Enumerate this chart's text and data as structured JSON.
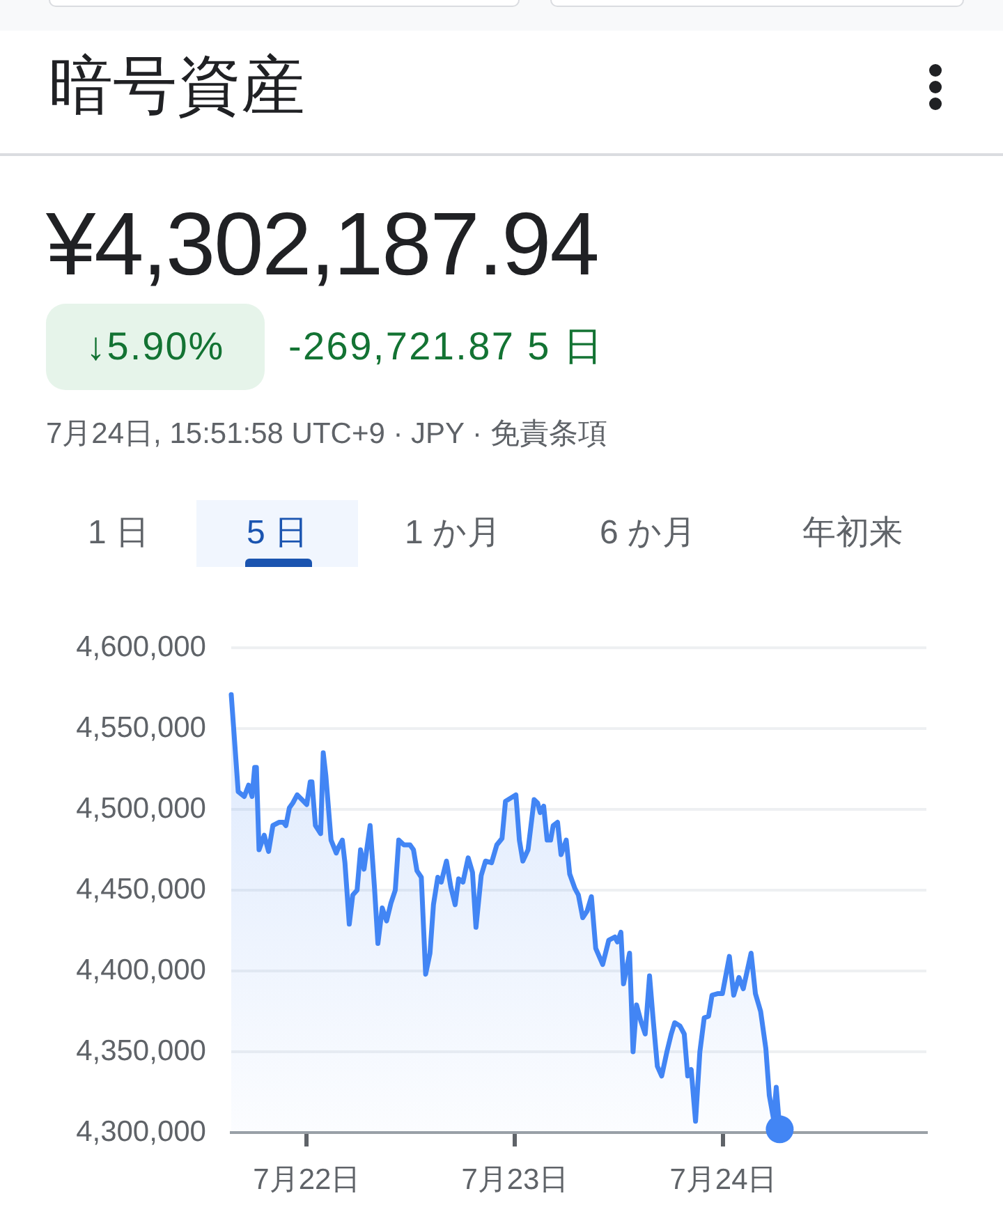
{
  "chart_data": {
    "type": "area",
    "title": "暗号資産",
    "subtitle": "¥4,302,187.94",
    "annotations": [
      "↓5.90%",
      "-269,721.87 5 日",
      "7月24日, 15:51:58 UTC+9 · JPY · 免責条項",
      "1 日",
      "5 日",
      "1 か月",
      "6 か月",
      "年初来"
    ],
    "x": [
      "--07-21T15:18",
      "--07-21T16:06",
      "--07-21T16:48",
      "--07-21T17:18",
      "--07-21T17:42",
      "--07-21T18:00",
      "--07-21T18:12",
      "--07-21T18:30",
      "--07-21T19:06",
      "--07-21T19:36",
      "--07-21T20:06",
      "--07-21T20:48",
      "--07-21T21:18",
      "--07-21T21:36",
      "--07-21T22:00",
      "--07-21T22:24",
      "--07-21T22:54",
      "--07-22T00:00",
      "--07-22T00:24",
      "--07-22T00:36",
      "--07-22T01:00",
      "--07-22T01:36",
      "--07-22T01:54",
      "--07-22T02:12",
      "--07-22T02:48",
      "--07-22T03:24",
      "--07-22T03:42",
      "--07-22T04:06",
      "--07-22T04:24",
      "--07-22T04:54",
      "--07-22T05:18",
      "--07-22T05:48",
      "--07-22T06:12",
      "--07-22T06:36",
      "--07-22T07:18",
      "--07-22T07:48",
      "--07-22T08:12",
      "--07-22T08:42",
      "--07-22T09:12",
      "--07-22T09:42",
      "--07-22T10:12",
      "--07-22T10:36",
      "--07-22T11:12",
      "--07-22T11:54",
      "--07-22T12:18",
      "--07-22T12:42",
      "--07-22T13:12",
      "--07-22T13:42",
      "--07-22T14:12",
      "--07-22T14:36",
      "--07-22T15:06",
      "--07-22T15:30",
      "--07-22T16:06",
      "--07-22T16:36",
      "--07-22T17:06",
      "--07-22T17:30",
      "--07-22T18:00",
      "--07-22T18:36",
      "--07-22T19:06",
      "--07-22T19:30",
      "--07-22T20:06",
      "--07-22T20:36",
      "--07-22T21:18",
      "--07-22T21:54",
      "--07-22T22:30",
      "--07-22T22:54",
      "--07-23T00:06",
      "--07-23T00:30",
      "--07-23T00:54",
      "--07-23T01:30",
      "--07-23T02:12",
      "--07-23T02:36",
      "--07-23T02:54",
      "--07-23T03:18",
      "--07-23T03:42",
      "--07-23T04:06",
      "--07-23T04:24",
      "--07-23T04:54",
      "--07-23T05:18",
      "--07-23T05:54",
      "--07-23T06:18",
      "--07-23T06:54",
      "--07-23T07:18",
      "--07-23T07:48",
      "--07-23T08:18",
      "--07-23T08:48",
      "--07-23T09:18",
      "--07-23T10:06",
      "--07-23T10:48",
      "--07-23T11:30",
      "--07-23T11:48",
      "--07-23T12:12",
      "--07-23T12:30",
      "--07-23T13:12",
      "--07-23T13:36",
      "--07-23T14:00",
      "--07-23T14:30",
      "--07-23T15:00",
      "--07-23T15:30",
      "--07-23T15:54",
      "--07-23T16:24",
      "--07-23T16:54",
      "--07-23T17:30",
      "--07-23T18:00",
      "--07-23T18:24",
      "--07-23T19:00",
      "--07-23T19:30",
      "--07-23T19:54",
      "--07-23T20:18",
      "--07-23T20:48",
      "--07-23T21:18",
      "--07-23T21:48",
      "--07-23T22:18",
      "--07-23T22:42",
      "--07-23T23:24",
      "--07-23T23:54",
      "--07-24T00:42",
      "--07-24T01:12",
      "--07-24T01:48",
      "--07-24T02:18",
      "--07-24T03:12",
      "--07-24T03:42",
      "--07-24T04:18",
      "--07-24T04:54",
      "--07-24T05:18",
      "--07-24T05:48",
      "--07-24T06:06",
      "--07-24T06:30"
    ],
    "series": [
      {
        "color": "#4285f4",
        "values": [
          4571000,
          4511000,
          4508000,
          4515000,
          4508000,
          4526000,
          4526000,
          4475000,
          4484000,
          4474000,
          4490000,
          4492000,
          4492000,
          4490000,
          4501000,
          4504000,
          4509000,
          4503000,
          4517000,
          4517000,
          4490000,
          4485000,
          4535000,
          4521000,
          4481000,
          4473000,
          4477000,
          4481000,
          4467000,
          4429000,
          4447000,
          4450000,
          4475000,
          4463000,
          4490000,
          4452000,
          4417000,
          4439000,
          4431000,
          4442000,
          4450000,
          4481000,
          4478000,
          4478000,
          4475000,
          4462000,
          4458000,
          4398000,
          4411000,
          4441000,
          4458000,
          4455000,
          4468000,
          4452000,
          4441000,
          4457000,
          4455000,
          4470000,
          4461000,
          4427000,
          4459000,
          4468000,
          4467000,
          4478000,
          4482000,
          4505000,
          4509000,
          4481000,
          4468000,
          4475000,
          4506000,
          4504000,
          4498000,
          4502000,
          4481000,
          4481000,
          4490000,
          4492000,
          4472000,
          4481000,
          4460000,
          4451000,
          4447000,
          4433000,
          4437000,
          4446000,
          4414000,
          4404000,
          4419000,
          4421000,
          4418000,
          4424000,
          4392000,
          4411000,
          4350000,
          4379000,
          4369000,
          4361000,
          4397000,
          4371000,
          4341000,
          4335000,
          4350000,
          4361000,
          4368000,
          4366000,
          4361000,
          4335000,
          4339000,
          4307000,
          4350000,
          4371000,
          4372000,
          4385000,
          4386000,
          4386000,
          4409000,
          4385000,
          4396000,
          4389000,
          4411000,
          4386000,
          4375000,
          4352000,
          4323000,
          4308000,
          4328000,
          4302000
        ]
      },
      {
        "type": "scatter",
        "color": "#4285f4",
        "x": [
          "--07-24T06:30"
        ],
        "values": [
          4302000
        ]
      }
    ],
    "xlim": [
      "--07-21T15:18",
      "--07-24T23:24"
    ],
    "xticks": [
      {
        "value": "--07-22",
        "label": "7月22日"
      },
      {
        "value": "--07-23",
        "label": "7月23日"
      },
      {
        "value": "--07-24",
        "label": "7月24日"
      }
    ],
    "ylim": [
      4300000,
      4600000
    ],
    "yticks": [
      {
        "value": 4300000,
        "label": "4,300,000"
      },
      {
        "value": 4350000,
        "label": "4,350,000"
      },
      {
        "value": 4400000,
        "label": "4,400,000"
      },
      {
        "value": 4450000,
        "label": "4,450,000"
      },
      {
        "value": 4500000,
        "label": "4,500,000"
      },
      {
        "value": 4550000,
        "label": "4,550,000"
      },
      {
        "value": 4600000,
        "label": "4,600,000"
      }
    ],
    "grid": "y"
  }
}
